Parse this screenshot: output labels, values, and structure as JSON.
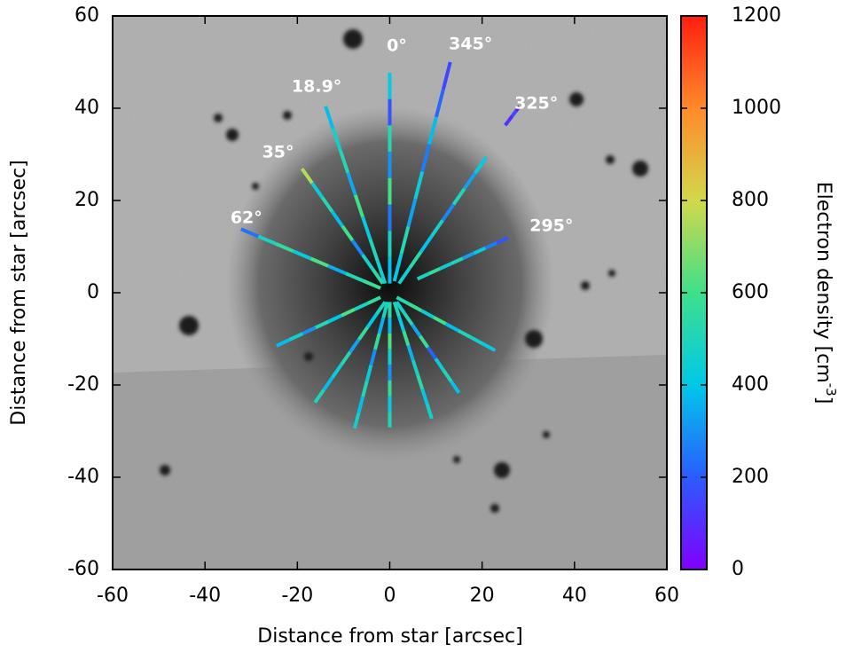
{
  "chart_data": {
    "type": "image",
    "xlabel": "Distance from star [arcsec]",
    "ylabel": "Distance from star [arcsec]",
    "xlim": [
      -60,
      60
    ],
    "ylim": [
      -60,
      60
    ],
    "xticks": [
      -60,
      -40,
      -20,
      0,
      20,
      40,
      60
    ],
    "yticks": [
      -60,
      -40,
      -20,
      0,
      20,
      40,
      60
    ],
    "colorbar": {
      "label": "Electron density [cm",
      "label_sup": "-3",
      "label_end": "]",
      "lim": [
        0,
        1200
      ],
      "ticks": [
        0,
        200,
        400,
        600,
        800,
        1000,
        1200
      ],
      "colormap": [
        "#8000ff",
        "#2a5cff",
        "#00c8e8",
        "#3ee08a",
        "#d2d84a",
        "#ff8a2a",
        "#ff1e10"
      ]
    },
    "slits": [
      {
        "label": "0°",
        "segments": [
          {
            "x": [
              0,
              0
            ],
            "y": [
              47.7,
              2
            ],
            "density": [
              420,
              180,
              520,
              300,
              610,
              250,
              480,
              390
            ]
          },
          {
            "x": [
              0,
              0
            ],
            "y": [
              -2,
              -29.2
            ],
            "density": [
              540,
              380,
              620,
              450,
              300,
              560,
              420,
              500
            ]
          }
        ]
      },
      {
        "label": "345°",
        "segments": [
          {
            "x": [
              13.1,
              1
            ],
            "y": [
              50,
              2.5
            ],
            "density": [
              150,
              220,
              380,
              260,
              440,
              330,
              520,
              410
            ]
          },
          {
            "x": [
              -0.5,
              -7.6
            ],
            "y": [
              -2,
              -29.4
            ],
            "density": [
              480,
              360,
              560,
              290,
              420,
              510,
              380,
              460
            ]
          }
        ]
      },
      {
        "label": "18.9°",
        "segments": [
          {
            "x": [
              -13.9,
              -1
            ],
            "y": [
              40.4,
              2
            ],
            "density": [
              380,
              460,
              520,
              340,
              600,
              420,
              500,
              450
            ]
          },
          {
            "x": [
              1,
              9.1
            ],
            "y": [
              -2,
              -27.3
            ],
            "density": [
              500,
              420,
              580,
              360,
              470,
              540,
              400,
              460
            ]
          }
        ]
      },
      {
        "label": "35°",
        "segments": [
          {
            "x": [
              -19,
              -1.5
            ],
            "y": [
              26.9,
              2
            ],
            "density": [
              760,
              430,
              520,
              380,
              600,
              280,
              470,
              540
            ]
          },
          {
            "x": [
              1.5,
              15
            ],
            "y": [
              -2,
              -21.7
            ],
            "density": [
              460,
              520,
              340,
              580,
              210,
              440,
              500,
              390
            ]
          }
        ]
      },
      {
        "label": "62°",
        "segments": [
          {
            "x": [
              -32.2,
              -2
            ],
            "y": [
              13.8,
              1
            ],
            "density": [
              240,
              480,
              560,
              420,
              620,
              350,
              510,
              580
            ]
          },
          {
            "x": [
              1.5,
              22.8
            ],
            "y": [
              -1,
              -12.5
            ],
            "density": [
              520,
              580,
              440,
              600,
              380,
              500,
              460,
              420
            ]
          }
        ]
      },
      {
        "label": "325°",
        "segments": [
          {
            "x": [
              25,
              28.1
            ],
            "y": [
              36.3,
              40.4
            ],
            "density": [
              120,
              80,
              160,
              60
            ]
          },
          {
            "x": [
              20.9,
              2
            ],
            "y": [
              29.4,
              2
            ],
            "density": [
              420,
              330,
              500,
              280,
              470,
              390,
              540,
              450
            ]
          },
          {
            "x": [
              -1,
              -16.2
            ],
            "y": [
              -2,
              -23.8
            ],
            "density": [
              480,
              400,
              560,
              330,
              520,
              440,
              380,
              500
            ]
          }
        ]
      },
      {
        "label": "295°",
        "segments": [
          {
            "x": [
              25.6,
              6
            ],
            "y": [
              11.9,
              3
            ],
            "density": [
              180,
              260,
              420,
              320,
              500,
              440,
              560,
              480
            ]
          },
          {
            "x": [
              -2,
              -24.5
            ],
            "y": [
              -1,
              -11.5
            ],
            "density": [
              560,
              480,
              620,
              400,
              520,
              300,
              460,
              380
            ]
          }
        ]
      }
    ]
  }
}
